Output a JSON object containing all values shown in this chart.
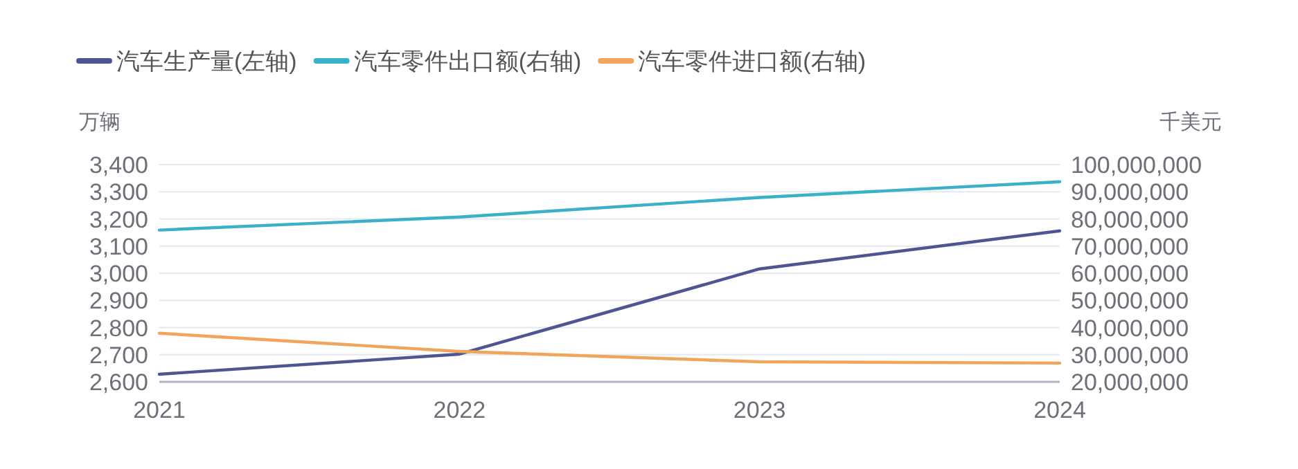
{
  "chart_data": {
    "type": "line",
    "categories": [
      "2021",
      "2022",
      "2023",
      "2024"
    ],
    "ylabel": "万辆",
    "y2label": "千美元",
    "ylim": [
      2600,
      3400
    ],
    "yticks": [
      {
        "value": 2600,
        "label": "2,600"
      },
      {
        "value": 2700,
        "label": "2,700"
      },
      {
        "value": 2800,
        "label": "2,800"
      },
      {
        "value": 2900,
        "label": "2,900"
      },
      {
        "value": 3000,
        "label": "3,000"
      },
      {
        "value": 3100,
        "label": "3,100"
      },
      {
        "value": 3200,
        "label": "3,200"
      },
      {
        "value": 3300,
        "label": "3,300"
      },
      {
        "value": 3400,
        "label": "3,400"
      }
    ],
    "y2lim": [
      20000000,
      100000000
    ],
    "y2ticks": [
      {
        "value": 20000000,
        "label": "20,000,000"
      },
      {
        "value": 30000000,
        "label": "30,000,000"
      },
      {
        "value": 40000000,
        "label": "40,000,000"
      },
      {
        "value": 50000000,
        "label": "50,000,000"
      },
      {
        "value": 60000000,
        "label": "60,000,000"
      },
      {
        "value": 70000000,
        "label": "70,000,000"
      },
      {
        "value": 80000000,
        "label": "80,000,000"
      },
      {
        "value": 90000000,
        "label": "90,000,000"
      },
      {
        "value": 100000000,
        "label": "100,000,000"
      }
    ],
    "grid": "y",
    "legend": "top left",
    "marker": "none",
    "line_style": "solid",
    "series": [
      {
        "name": "汽车生产量(左轴)",
        "color": "#4e5592",
        "values": [
          2628,
          2702,
          3016,
          3156
        ]
      },
      {
        "name": "汽车零件出口额(右轴)",
        "color": "#3bb0c9",
        "axis": "y2",
        "values": [
          75900000,
          80700000,
          87900000,
          93700000
        ]
      },
      {
        "name": "汽车零件进口额(右轴)",
        "color": "#f0a55a",
        "axis": "y2",
        "values": [
          37900000,
          31200000,
          27400000,
          26900000
        ]
      }
    ]
  }
}
